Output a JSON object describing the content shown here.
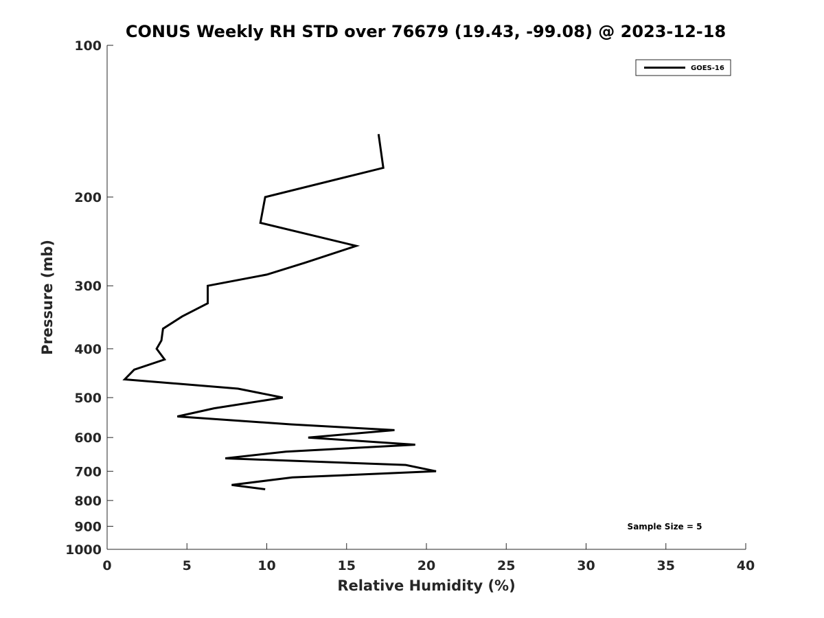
{
  "chart_data": {
    "type": "line",
    "title": "CONUS Weekly RH STD over 76679 (19.43, -99.08) @ 2023-12-18",
    "xlabel": "Relative Humidity (%)",
    "ylabel": "Pressure (mb)",
    "xlim": [
      0,
      40
    ],
    "ylim": [
      100,
      1000
    ],
    "yscale": "log",
    "y_reversed": true,
    "x_ticks": [
      0,
      5,
      10,
      15,
      20,
      25,
      30,
      35,
      40
    ],
    "x_tick_labels": [
      "0",
      "5",
      "10",
      "15",
      "20",
      "25",
      "30",
      "35",
      "40"
    ],
    "y_ticks": [
      100,
      200,
      300,
      400,
      500,
      600,
      700,
      800,
      900,
      1000
    ],
    "y_tick_labels": [
      "100",
      "200",
      "300",
      "400",
      "500",
      "600",
      "700",
      "800",
      "900",
      "1000"
    ],
    "grid": false,
    "legend_position": "top-right",
    "annotation": "Sample Size = 5",
    "series": [
      {
        "name": "GOES-16",
        "color": "#000000",
        "x": [
          17.0,
          17.3,
          9.9,
          9.6,
          15.6,
          12.4,
          10.0,
          6.3,
          6.3,
          4.7,
          3.5,
          3.4,
          3.1,
          3.6,
          1.7,
          1.1,
          8.2,
          11.0,
          6.7,
          4.4,
          11.5,
          18.0,
          12.6,
          19.3,
          11.2,
          7.4,
          18.7,
          20.6,
          11.6,
          7.8,
          9.9
        ],
        "y": [
          150,
          175,
          200,
          225,
          250,
          270,
          285,
          300,
          325,
          345,
          365,
          385,
          400,
          420,
          440,
          460,
          480,
          500,
          525,
          545,
          565,
          580,
          600,
          620,
          640,
          660,
          680,
          700,
          720,
          745,
          760
        ]
      }
    ]
  }
}
